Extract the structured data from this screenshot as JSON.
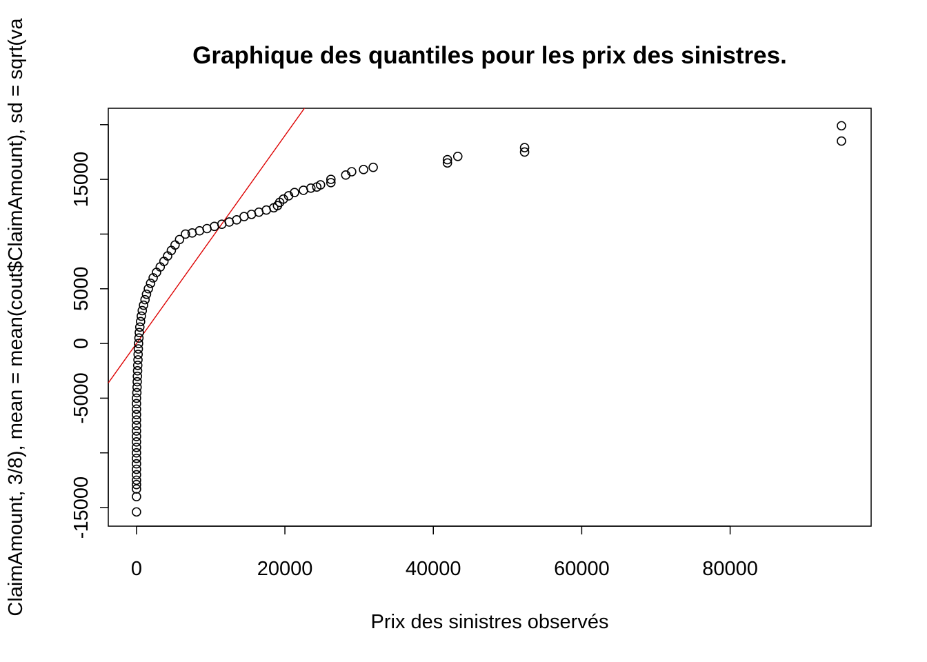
{
  "chart_data": {
    "type": "scatter",
    "title": "Graphique des quantiles pour les prix des sinistres.",
    "xlabel": "Prix des sinistres observés",
    "ylabel": "ClaimAmount, 3/8), mean = mean(cout$ClaimAmount), sd = sqrt(va",
    "xlim": [
      -3800,
      99000
    ],
    "ylim": [
      -16700,
      21500
    ],
    "x_ticks": [
      0,
      20000,
      40000,
      60000,
      80000
    ],
    "x_tick_labels": [
      "0",
      "20000",
      "40000",
      "60000",
      "80000"
    ],
    "y_ticks": [
      -15000,
      -10000,
      -5000,
      0,
      5000,
      10000,
      15000,
      20000
    ],
    "y_tick_labels": [
      "-15000",
      "",
      "-5000",
      "0",
      "5000",
      "",
      "15000",
      ""
    ],
    "grid": false,
    "colors": {
      "points": "#000000",
      "reference_line": "#dd0000"
    },
    "reference_line": {
      "intercept": 0,
      "slope": 0.95
    },
    "series": [
      {
        "points": [
          [
            0,
            -15400
          ],
          [
            0,
            -14000
          ],
          [
            0,
            -13300
          ],
          [
            0,
            -12900
          ],
          [
            0,
            -12500
          ],
          [
            0,
            -12000
          ],
          [
            0,
            -11500
          ],
          [
            0,
            -11000
          ],
          [
            0,
            -10500
          ],
          [
            0,
            -10000
          ],
          [
            0,
            -9500
          ],
          [
            0,
            -9000
          ],
          [
            0,
            -8500
          ],
          [
            0,
            -8000
          ],
          [
            0,
            -7500
          ],
          [
            0,
            -7000
          ],
          [
            0,
            -6500
          ],
          [
            0,
            -6000
          ],
          [
            0,
            -5500
          ],
          [
            0,
            -5000
          ],
          [
            50,
            -4500
          ],
          [
            80,
            -4000
          ],
          [
            100,
            -3500
          ],
          [
            120,
            -3000
          ],
          [
            150,
            -2500
          ],
          [
            170,
            -2000
          ],
          [
            200,
            -1500
          ],
          [
            220,
            -1000
          ],
          [
            250,
            -500
          ],
          [
            280,
            0
          ],
          [
            330,
            500
          ],
          [
            380,
            1000
          ],
          [
            450,
            1500
          ],
          [
            550,
            2000
          ],
          [
            650,
            2500
          ],
          [
            780,
            3000
          ],
          [
            950,
            3500
          ],
          [
            1150,
            4000
          ],
          [
            1350,
            4500
          ],
          [
            1600,
            5000
          ],
          [
            1900,
            5500
          ],
          [
            2250,
            6000
          ],
          [
            2700,
            6500
          ],
          [
            3200,
            7000
          ],
          [
            3700,
            7500
          ],
          [
            4200,
            8000
          ],
          [
            4700,
            8500
          ],
          [
            5200,
            9000
          ],
          [
            5800,
            9500
          ],
          [
            6600,
            10000
          ],
          [
            7500,
            10100
          ],
          [
            8500,
            10300
          ],
          [
            9500,
            10500
          ],
          [
            10500,
            10700
          ],
          [
            11500,
            10900
          ],
          [
            12500,
            11100
          ],
          [
            13500,
            11300
          ],
          [
            14500,
            11600
          ],
          [
            15500,
            11800
          ],
          [
            16500,
            12000
          ],
          [
            17500,
            12200
          ],
          [
            18500,
            12400
          ],
          [
            19000,
            12600
          ],
          [
            19300,
            12900
          ],
          [
            19800,
            13200
          ],
          [
            20500,
            13500
          ],
          [
            21300,
            13800
          ],
          [
            22500,
            14000
          ],
          [
            23500,
            14200
          ],
          [
            24300,
            14300
          ],
          [
            24800,
            14500
          ],
          [
            26200,
            14700
          ],
          [
            26200,
            15000
          ],
          [
            28200,
            15400
          ],
          [
            29000,
            15700
          ],
          [
            30600,
            15900
          ],
          [
            31900,
            16100
          ],
          [
            41900,
            16500
          ],
          [
            41900,
            16800
          ],
          [
            43300,
            17100
          ],
          [
            52300,
            17500
          ],
          [
            52300,
            17900
          ],
          [
            95000,
            18500
          ],
          [
            95000,
            19900
          ]
        ]
      }
    ]
  }
}
